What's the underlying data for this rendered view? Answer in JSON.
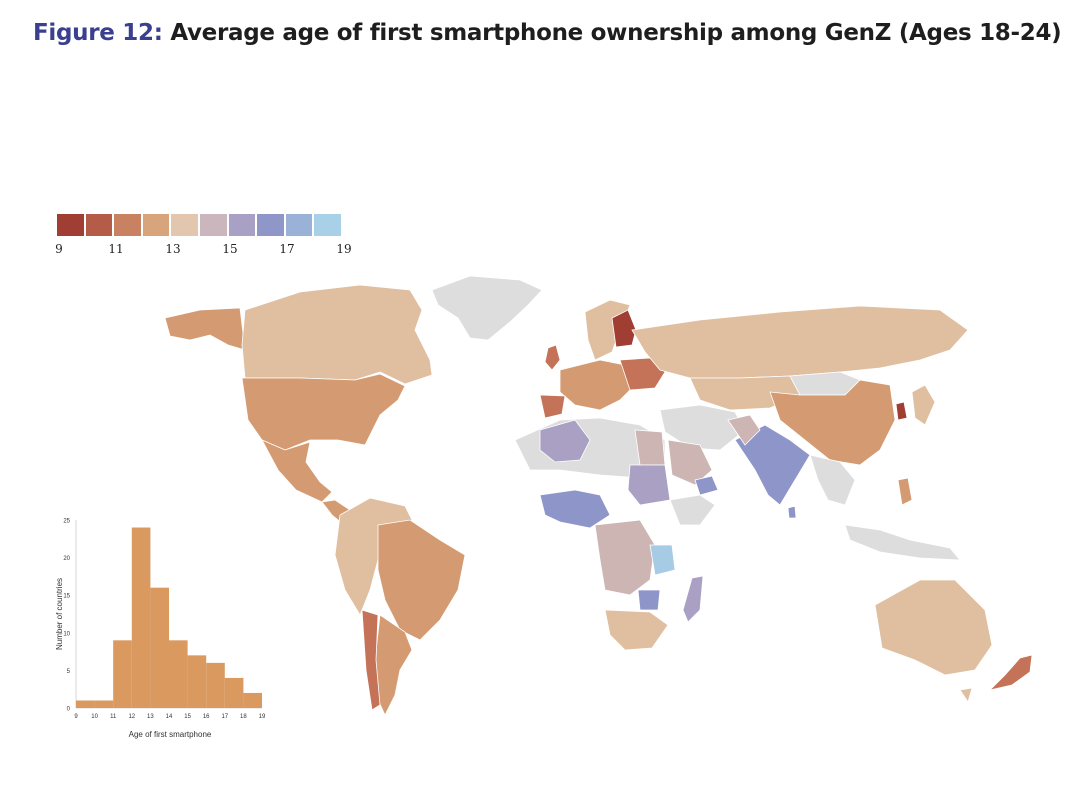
{
  "header": {
    "figure_label": "Figure 12:",
    "title": "Average age of first smartphone ownership among GenZ (Ages 18-24)"
  },
  "legend": {
    "ticks": [
      "9",
      "11",
      "13",
      "15",
      "17",
      "19"
    ],
    "colors": [
      "#a03e34",
      "#b45c48",
      "#c98261",
      "#d8a47c",
      "#e2c6ad",
      "#cbb6bd",
      "#a8a1c5",
      "#8f96c8",
      "#9ab2d8",
      "#a8d0e6"
    ]
  },
  "chart_data": {
    "type": "bar",
    "title": "",
    "xlabel": "Age of first smartphone",
    "ylabel": "Number of countries",
    "categories": [
      "9",
      "10",
      "11",
      "12",
      "13",
      "14",
      "15",
      "16",
      "17",
      "18"
    ],
    "x_ticks": [
      "9",
      "10",
      "11",
      "12",
      "13",
      "14",
      "15",
      "16",
      "17",
      "18",
      "19"
    ],
    "values": [
      1,
      1,
      9,
      24,
      16,
      9,
      7,
      6,
      4,
      2
    ],
    "ylim": [
      0,
      25
    ],
    "y_ticks": [
      "0",
      "5",
      "10",
      "15",
      "20",
      "25"
    ],
    "bar_color": "#d9995f"
  },
  "map": {
    "colors": {
      "none": "#dddddd",
      "c10": "#a03e34",
      "c11": "#c47358",
      "c12": "#d49a72",
      "c13": "#e0bea0",
      "c14": "#ccb5b3",
      "c15": "#aaa0c4",
      "c16": "#8e95c9",
      "c18": "#a6cbe4"
    }
  }
}
